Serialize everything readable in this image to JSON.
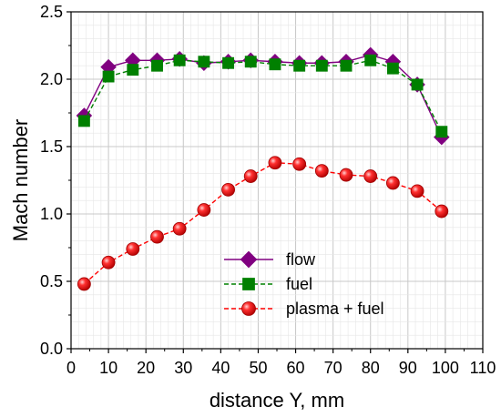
{
  "chart_data": {
    "type": "line",
    "xlabel": "distance Y, mm",
    "ylabel": "Mach number",
    "xlim": [
      0,
      110
    ],
    "ylim": [
      0.0,
      2.5
    ],
    "xticks": [
      0,
      10,
      20,
      30,
      40,
      50,
      60,
      70,
      80,
      90,
      100,
      110
    ],
    "yticks": [
      "0.0",
      "0.5",
      "1.0",
      "1.5",
      "2.0",
      "2.5"
    ],
    "grid": true,
    "legend_position": "center",
    "series": [
      {
        "name": "flow",
        "marker": "diamond",
        "line_style": "solid",
        "color": "#800080",
        "x": [
          3.5,
          10,
          16.5,
          23,
          29,
          35.5,
          42,
          48,
          54.5,
          61,
          67,
          73.5,
          80,
          86,
          92.5,
          99
        ],
        "y": [
          1.73,
          2.09,
          2.14,
          2.14,
          2.15,
          2.12,
          2.13,
          2.14,
          2.13,
          2.12,
          2.12,
          2.13,
          2.18,
          2.13,
          1.96,
          1.57
        ]
      },
      {
        "name": "fuel",
        "marker": "square",
        "line_style": "dashed",
        "color": "#008000",
        "x": [
          3.5,
          10,
          16.5,
          23,
          29,
          35.5,
          42,
          48,
          54.5,
          61,
          67,
          73.5,
          80,
          86,
          92.5,
          99
        ],
        "y": [
          1.69,
          2.02,
          2.07,
          2.1,
          2.14,
          2.13,
          2.12,
          2.13,
          2.11,
          2.1,
          2.1,
          2.1,
          2.14,
          2.08,
          1.96,
          1.61
        ]
      },
      {
        "name": "plasma + fuel",
        "marker": "sphere",
        "line_style": "dashed",
        "color": "#ff0000",
        "x": [
          3.5,
          10,
          16.5,
          23,
          29,
          35.5,
          42,
          48,
          54.5,
          61,
          67,
          73.5,
          80,
          86,
          92.5,
          99
        ],
        "y": [
          0.48,
          0.64,
          0.74,
          0.83,
          0.89,
          1.03,
          1.18,
          1.28,
          1.38,
          1.37,
          1.32,
          1.29,
          1.28,
          1.23,
          1.17,
          1.02
        ]
      }
    ]
  }
}
